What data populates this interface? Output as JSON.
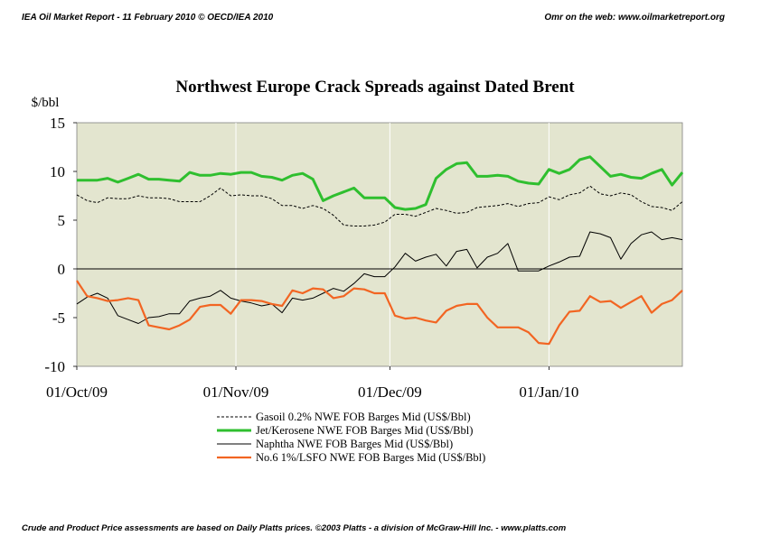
{
  "header": {
    "left": "IEA Oil Market Report - 11 February 2010      © OECD/IEA 2010",
    "right": "Omr on the web: www.oilmarketreport.org"
  },
  "footer": {
    "text": "Crude and Product Price assessments are based on Daily Platts prices. ©2003 Platts - a division of McGraw-Hill Inc. - www.platts.com"
  },
  "colors": {
    "plot_bg": "#e3e5cf",
    "gasoil": "#000000",
    "jet": "#2fbf2f",
    "naphtha": "#000000",
    "fuel": "#f26522"
  },
  "chart_data": {
    "type": "line",
    "title": "Northwest Europe Crack Spreads against Dated Brent",
    "ylabel": "$/bbl",
    "ylim": [
      -10,
      15
    ],
    "xlim": [
      "2009-10-01",
      "2010-01-27"
    ],
    "yticks": [
      15,
      10,
      5,
      0,
      -5,
      -10
    ],
    "xticks": [
      {
        "date": "2009-10-01",
        "label": "01/Oct/09"
      },
      {
        "date": "2009-11-01",
        "label": "01/Nov/09"
      },
      {
        "date": "2009-12-01",
        "label": "01/Dec/09"
      },
      {
        "date": "2010-01-01",
        "label": "01/Jan/10"
      }
    ],
    "grid": "vertical at month starts",
    "legend_position": "bottom",
    "series": [
      {
        "name": "Gasoil 0.2% NWE FOB Barges  Mid (US$/Bbl)",
        "style": "dashed",
        "points": [
          [
            "2009-10-01",
            7.6
          ],
          [
            "2009-10-03",
            7.0
          ],
          [
            "2009-10-05",
            6.8
          ],
          [
            "2009-10-07",
            7.3
          ],
          [
            "2009-10-09",
            7.2
          ],
          [
            "2009-10-11",
            7.2
          ],
          [
            "2009-10-13",
            7.5
          ],
          [
            "2009-10-15",
            7.3
          ],
          [
            "2009-10-17",
            7.3
          ],
          [
            "2009-10-19",
            7.2
          ],
          [
            "2009-10-21",
            6.9
          ],
          [
            "2009-10-23",
            6.9
          ],
          [
            "2009-10-25",
            6.9
          ],
          [
            "2009-10-27",
            7.5
          ],
          [
            "2009-10-29",
            8.3
          ],
          [
            "2009-10-31",
            7.5
          ],
          [
            "2009-11-02",
            7.6
          ],
          [
            "2009-11-04",
            7.5
          ],
          [
            "2009-11-06",
            7.5
          ],
          [
            "2009-11-08",
            7.2
          ],
          [
            "2009-11-10",
            6.5
          ],
          [
            "2009-11-12",
            6.5
          ],
          [
            "2009-11-14",
            6.2
          ],
          [
            "2009-11-16",
            6.5
          ],
          [
            "2009-11-18",
            6.2
          ],
          [
            "2009-11-20",
            5.5
          ],
          [
            "2009-11-22",
            4.5
          ],
          [
            "2009-11-24",
            4.4
          ],
          [
            "2009-11-26",
            4.4
          ],
          [
            "2009-11-28",
            4.5
          ],
          [
            "2009-11-30",
            4.8
          ],
          [
            "2009-12-02",
            5.6
          ],
          [
            "2009-12-04",
            5.6
          ],
          [
            "2009-12-06",
            5.4
          ],
          [
            "2009-12-08",
            5.8
          ],
          [
            "2009-12-10",
            6.2
          ],
          [
            "2009-12-12",
            6.0
          ],
          [
            "2009-12-14",
            5.7
          ],
          [
            "2009-12-16",
            5.8
          ],
          [
            "2009-12-18",
            6.3
          ],
          [
            "2009-12-20",
            6.4
          ],
          [
            "2009-12-22",
            6.5
          ],
          [
            "2009-12-24",
            6.7
          ],
          [
            "2009-12-26",
            6.4
          ],
          [
            "2009-12-28",
            6.7
          ],
          [
            "2009-12-30",
            6.8
          ],
          [
            "2010-01-01",
            7.4
          ],
          [
            "2010-01-03",
            7.1
          ],
          [
            "2010-01-05",
            7.6
          ],
          [
            "2010-01-07",
            7.8
          ],
          [
            "2010-01-09",
            8.5
          ],
          [
            "2010-01-11",
            7.7
          ],
          [
            "2010-01-13",
            7.5
          ],
          [
            "2010-01-15",
            7.8
          ],
          [
            "2010-01-17",
            7.6
          ],
          [
            "2010-01-19",
            6.9
          ],
          [
            "2010-01-21",
            6.4
          ],
          [
            "2010-01-23",
            6.3
          ],
          [
            "2010-01-25",
            6.0
          ],
          [
            "2010-01-27",
            6.9
          ]
        ]
      },
      {
        "name": "Jet/Kerosene NWE FOB Barges  Mid (US$/Bbl)",
        "style": "thick",
        "points": [
          [
            "2009-10-01",
            9.1
          ],
          [
            "2009-10-03",
            9.1
          ],
          [
            "2009-10-05",
            9.1
          ],
          [
            "2009-10-07",
            9.3
          ],
          [
            "2009-10-09",
            8.9
          ],
          [
            "2009-10-11",
            9.3
          ],
          [
            "2009-10-13",
            9.7
          ],
          [
            "2009-10-15",
            9.2
          ],
          [
            "2009-10-17",
            9.2
          ],
          [
            "2009-10-19",
            9.1
          ],
          [
            "2009-10-21",
            9.0
          ],
          [
            "2009-10-23",
            9.9
          ],
          [
            "2009-10-25",
            9.6
          ],
          [
            "2009-10-27",
            9.6
          ],
          [
            "2009-10-29",
            9.8
          ],
          [
            "2009-10-31",
            9.7
          ],
          [
            "2009-11-02",
            9.9
          ],
          [
            "2009-11-04",
            9.9
          ],
          [
            "2009-11-06",
            9.5
          ],
          [
            "2009-11-08",
            9.4
          ],
          [
            "2009-11-10",
            9.1
          ],
          [
            "2009-11-12",
            9.6
          ],
          [
            "2009-11-14",
            9.8
          ],
          [
            "2009-11-16",
            9.2
          ],
          [
            "2009-11-18",
            7.0
          ],
          [
            "2009-11-20",
            7.5
          ],
          [
            "2009-11-22",
            7.9
          ],
          [
            "2009-11-24",
            8.3
          ],
          [
            "2009-11-26",
            7.3
          ],
          [
            "2009-11-28",
            7.3
          ],
          [
            "2009-11-30",
            7.3
          ],
          [
            "2009-12-02",
            6.3
          ],
          [
            "2009-12-04",
            6.1
          ],
          [
            "2009-12-06",
            6.2
          ],
          [
            "2009-12-08",
            6.6
          ],
          [
            "2009-12-10",
            9.3
          ],
          [
            "2009-12-12",
            10.2
          ],
          [
            "2009-12-14",
            10.8
          ],
          [
            "2009-12-16",
            10.9
          ],
          [
            "2009-12-18",
            9.5
          ],
          [
            "2009-12-20",
            9.5
          ],
          [
            "2009-12-22",
            9.6
          ],
          [
            "2009-12-24",
            9.5
          ],
          [
            "2009-12-26",
            9.0
          ],
          [
            "2009-12-28",
            8.8
          ],
          [
            "2009-12-30",
            8.7
          ],
          [
            "2010-01-01",
            10.2
          ],
          [
            "2010-01-03",
            9.8
          ],
          [
            "2010-01-05",
            10.2
          ],
          [
            "2010-01-07",
            11.2
          ],
          [
            "2010-01-09",
            11.5
          ],
          [
            "2010-01-11",
            10.5
          ],
          [
            "2010-01-13",
            9.5
          ],
          [
            "2010-01-15",
            9.7
          ],
          [
            "2010-01-17",
            9.4
          ],
          [
            "2010-01-19",
            9.3
          ],
          [
            "2010-01-21",
            9.8
          ],
          [
            "2010-01-23",
            10.2
          ],
          [
            "2010-01-25",
            8.6
          ],
          [
            "2010-01-27",
            9.9
          ]
        ]
      },
      {
        "name": "Naphtha NWE FOB Barges  Mid (US$/Bbl)",
        "style": "thin",
        "points": [
          [
            "2009-10-01",
            -3.6
          ],
          [
            "2009-10-03",
            -2.9
          ],
          [
            "2009-10-05",
            -2.5
          ],
          [
            "2009-10-07",
            -3.0
          ],
          [
            "2009-10-09",
            -4.8
          ],
          [
            "2009-10-11",
            -5.2
          ],
          [
            "2009-10-13",
            -5.6
          ],
          [
            "2009-10-15",
            -5.0
          ],
          [
            "2009-10-17",
            -4.9
          ],
          [
            "2009-10-19",
            -4.6
          ],
          [
            "2009-10-21",
            -4.6
          ],
          [
            "2009-10-23",
            -3.3
          ],
          [
            "2009-10-25",
            -3.0
          ],
          [
            "2009-10-27",
            -2.8
          ],
          [
            "2009-10-29",
            -2.2
          ],
          [
            "2009-10-31",
            -3.0
          ],
          [
            "2009-11-02",
            -3.3
          ],
          [
            "2009-11-04",
            -3.5
          ],
          [
            "2009-11-06",
            -3.8
          ],
          [
            "2009-11-08",
            -3.6
          ],
          [
            "2009-11-10",
            -4.5
          ],
          [
            "2009-11-12",
            -3.0
          ],
          [
            "2009-11-14",
            -3.2
          ],
          [
            "2009-11-16",
            -3.0
          ],
          [
            "2009-11-18",
            -2.5
          ],
          [
            "2009-11-20",
            -2.0
          ],
          [
            "2009-11-22",
            -2.3
          ],
          [
            "2009-11-24",
            -1.5
          ],
          [
            "2009-11-26",
            -0.5
          ],
          [
            "2009-11-28",
            -0.8
          ],
          [
            "2009-11-30",
            -0.8
          ],
          [
            "2009-12-02",
            0.2
          ],
          [
            "2009-12-04",
            1.6
          ],
          [
            "2009-12-06",
            0.8
          ],
          [
            "2009-12-08",
            1.2
          ],
          [
            "2009-12-10",
            1.5
          ],
          [
            "2009-12-12",
            0.3
          ],
          [
            "2009-12-14",
            1.8
          ],
          [
            "2009-12-16",
            2.0
          ],
          [
            "2009-12-18",
            0.1
          ],
          [
            "2009-12-20",
            1.2
          ],
          [
            "2009-12-22",
            1.6
          ],
          [
            "2009-12-24",
            2.6
          ],
          [
            "2009-12-26",
            -0.2
          ],
          [
            "2009-12-28",
            -0.2
          ],
          [
            "2009-12-30",
            -0.2
          ],
          [
            "2010-01-01",
            0.3
          ],
          [
            "2010-01-03",
            0.7
          ],
          [
            "2010-01-05",
            1.2
          ],
          [
            "2010-01-07",
            1.3
          ],
          [
            "2010-01-09",
            3.8
          ],
          [
            "2010-01-11",
            3.6
          ],
          [
            "2010-01-13",
            3.2
          ],
          [
            "2010-01-15",
            1.0
          ],
          [
            "2010-01-17",
            2.6
          ],
          [
            "2010-01-19",
            3.5
          ],
          [
            "2010-01-21",
            3.8
          ],
          [
            "2010-01-23",
            3.0
          ],
          [
            "2010-01-25",
            3.2
          ],
          [
            "2010-01-27",
            3.0
          ]
        ]
      },
      {
        "name": "No.6 1%/LSFO NWE FOB Barges  Mid (US$/Bbl)",
        "style": "medium",
        "points": [
          [
            "2009-10-01",
            -1.2
          ],
          [
            "2009-10-03",
            -2.8
          ],
          [
            "2009-10-05",
            -3.0
          ],
          [
            "2009-10-07",
            -3.3
          ],
          [
            "2009-10-09",
            -3.2
          ],
          [
            "2009-10-11",
            -3.0
          ],
          [
            "2009-10-13",
            -3.2
          ],
          [
            "2009-10-15",
            -5.8
          ],
          [
            "2009-10-17",
            -6.0
          ],
          [
            "2009-10-19",
            -6.2
          ],
          [
            "2009-10-21",
            -5.8
          ],
          [
            "2009-10-23",
            -5.2
          ],
          [
            "2009-10-25",
            -3.9
          ],
          [
            "2009-10-27",
            -3.7
          ],
          [
            "2009-10-29",
            -3.7
          ],
          [
            "2009-10-31",
            -4.6
          ],
          [
            "2009-11-02",
            -3.2
          ],
          [
            "2009-11-04",
            -3.2
          ],
          [
            "2009-11-06",
            -3.3
          ],
          [
            "2009-11-08",
            -3.6
          ],
          [
            "2009-11-10",
            -3.8
          ],
          [
            "2009-11-12",
            -2.2
          ],
          [
            "2009-11-14",
            -2.5
          ],
          [
            "2009-11-16",
            -2.0
          ],
          [
            "2009-11-18",
            -2.1
          ],
          [
            "2009-11-20",
            -3.0
          ],
          [
            "2009-11-22",
            -2.8
          ],
          [
            "2009-11-24",
            -2.0
          ],
          [
            "2009-11-26",
            -2.1
          ],
          [
            "2009-11-28",
            -2.5
          ],
          [
            "2009-11-30",
            -2.5
          ],
          [
            "2009-12-02",
            -4.8
          ],
          [
            "2009-12-04",
            -5.1
          ],
          [
            "2009-12-06",
            -5.0
          ],
          [
            "2009-12-08",
            -5.3
          ],
          [
            "2009-12-10",
            -5.5
          ],
          [
            "2009-12-12",
            -4.3
          ],
          [
            "2009-12-14",
            -3.8
          ],
          [
            "2009-12-16",
            -3.6
          ],
          [
            "2009-12-18",
            -3.6
          ],
          [
            "2009-12-20",
            -5.0
          ],
          [
            "2009-12-22",
            -6.0
          ],
          [
            "2009-12-24",
            -6.0
          ],
          [
            "2009-12-26",
            -6.0
          ],
          [
            "2009-12-28",
            -6.5
          ],
          [
            "2009-12-30",
            -7.6
          ],
          [
            "2010-01-01",
            -7.7
          ],
          [
            "2010-01-03",
            -5.8
          ],
          [
            "2010-01-05",
            -4.4
          ],
          [
            "2010-01-07",
            -4.3
          ],
          [
            "2010-01-09",
            -2.8
          ],
          [
            "2010-01-11",
            -3.4
          ],
          [
            "2010-01-13",
            -3.3
          ],
          [
            "2010-01-15",
            -4.0
          ],
          [
            "2010-01-17",
            -3.4
          ],
          [
            "2010-01-19",
            -2.8
          ],
          [
            "2010-01-21",
            -4.5
          ],
          [
            "2010-01-23",
            -3.6
          ],
          [
            "2010-01-25",
            -3.2
          ],
          [
            "2010-01-27",
            -2.2
          ]
        ]
      }
    ]
  }
}
